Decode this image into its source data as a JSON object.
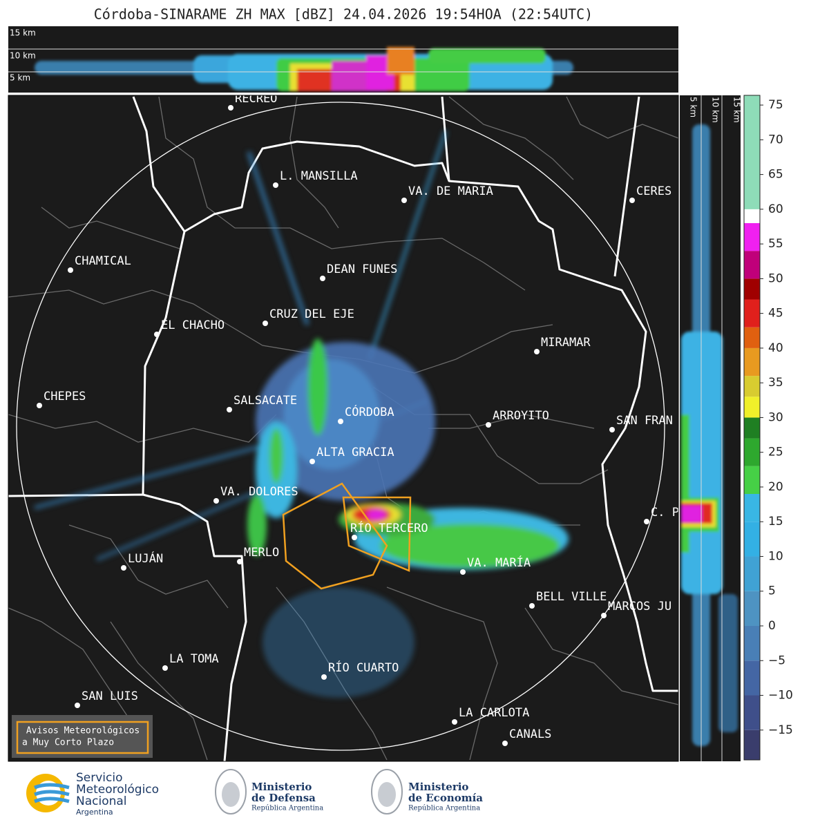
{
  "title": "Córdoba-SINARAME ZH MAX [dBZ] 24.04.2026 19:54HOA (22:54UTC)",
  "top_panel": {
    "height_labels": [
      "15 km",
      "10 km",
      "5 km"
    ]
  },
  "side_panel": {
    "height_labels": [
      "5 km",
      "10 km",
      "15 km"
    ]
  },
  "cities": [
    "RECREO",
    "L. MANSILLA",
    "VA. DE MARIA",
    "CERES",
    "CHAMICAL",
    "DEAN FUNES",
    "CRUZ DEL EJE",
    "EL CHACHO",
    "MIRAMAR",
    "CHEPES",
    "SALSACATE",
    "CÓRDOBA",
    "ARROYITO",
    "SAN FRAN",
    "ALTA GRACIA",
    "VA. DOLORES",
    "C. P",
    "RÍO TERCERO",
    "MERLO",
    "LUJÁN",
    "VA. MARÍA",
    "BELL VILLE",
    "MARCOS JU",
    "LA TOMA",
    "RÍO CUARTO",
    "SAN LUIS",
    "LA CARLOTA",
    "CANALS"
  ],
  "colorbar": {
    "lim": [
      -19.3,
      76.4
    ],
    "ticks": [
      75,
      70,
      65,
      60,
      55,
      50,
      45,
      40,
      35,
      30,
      25,
      20,
      15,
      10,
      5,
      0,
      {
        "value": -5,
        "label": "−5"
      },
      {
        "value": -10,
        "label": "−10"
      },
      {
        "value": -15,
        "label": "−15"
      }
    ],
    "segments": [
      {
        "from": -19.3,
        "to": -15,
        "color": "#3a3d6c"
      },
      {
        "from": -15,
        "to": -10,
        "color": "#3f4f8a"
      },
      {
        "from": -10,
        "to": -5,
        "color": "#4466a4"
      },
      {
        "from": -5,
        "to": 0,
        "color": "#497fb6"
      },
      {
        "from": 0,
        "to": 5,
        "color": "#4e93c2"
      },
      {
        "from": 5,
        "to": 10,
        "color": "#40a2d4"
      },
      {
        "from": 10,
        "to": 15,
        "color": "#33b0e4"
      },
      {
        "from": 15,
        "to": 19,
        "color": "#39b6e4"
      },
      {
        "from": 19,
        "to": 23,
        "color": "#46d046"
      },
      {
        "from": 23,
        "to": 27,
        "color": "#2ea82e"
      },
      {
        "from": 27,
        "to": 30,
        "color": "#1f7f22"
      },
      {
        "from": 30,
        "to": 33,
        "color": "#f0f02a"
      },
      {
        "from": 33,
        "to": 36,
        "color": "#d8cc30"
      },
      {
        "from": 36,
        "to": 40,
        "color": "#e89a20"
      },
      {
        "from": 40,
        "to": 43,
        "color": "#e06010"
      },
      {
        "from": 43,
        "to": 47,
        "color": "#e0201c"
      },
      {
        "from": 47,
        "to": 50,
        "color": "#a00000"
      },
      {
        "from": 50,
        "to": 54,
        "color": "#c0007a"
      },
      {
        "from": 54,
        "to": 58,
        "color": "#f020f0"
      },
      {
        "from": 58,
        "to": 60,
        "color": "#ffffff"
      },
      {
        "from": 60,
        "to": 76.4,
        "color": "#8edcb8"
      }
    ]
  },
  "warning_box": {
    "lines": [
      "Avisos Meteorológicos",
      "a Muy Corto Plazo"
    ]
  },
  "logos": [
    {
      "lines": [
        "Servicio",
        "Meteorológico",
        "Nacional",
        "Argentina"
      ]
    },
    {
      "lines": [
        "Ministerio",
        "de Defensa",
        "República Argentina"
      ]
    },
    {
      "lines": [
        "Ministerio",
        "de Economía",
        "República Argentina"
      ]
    }
  ]
}
